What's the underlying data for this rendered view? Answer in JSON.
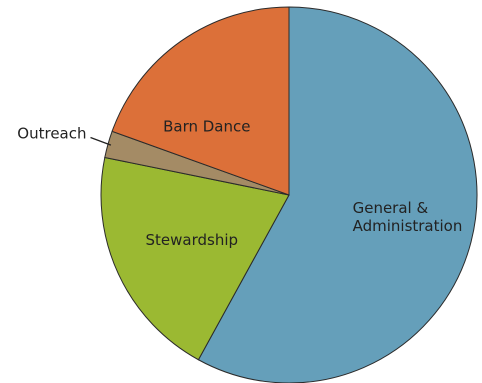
{
  "chart_data": {
    "type": "pie",
    "title": "",
    "slices": [
      {
        "label": [
          "General &",
          "Administration"
        ],
        "value": 58.0,
        "color": "#659fba",
        "label_placement": "inside"
      },
      {
        "label": [
          "Stewardship"
        ],
        "value": 20.2,
        "color": "#9bb932",
        "label_placement": "inside"
      },
      {
        "label": [
          "Outreach"
        ],
        "value": 2.3,
        "color": "#a48b65",
        "label_placement": "outside"
      },
      {
        "label": [
          "Barn Dance"
        ],
        "value": 19.5,
        "color": "#dc7039",
        "label_placement": "inside"
      }
    ],
    "start_angle": "12 o'clock",
    "direction": "clockwise",
    "legend": "none"
  }
}
